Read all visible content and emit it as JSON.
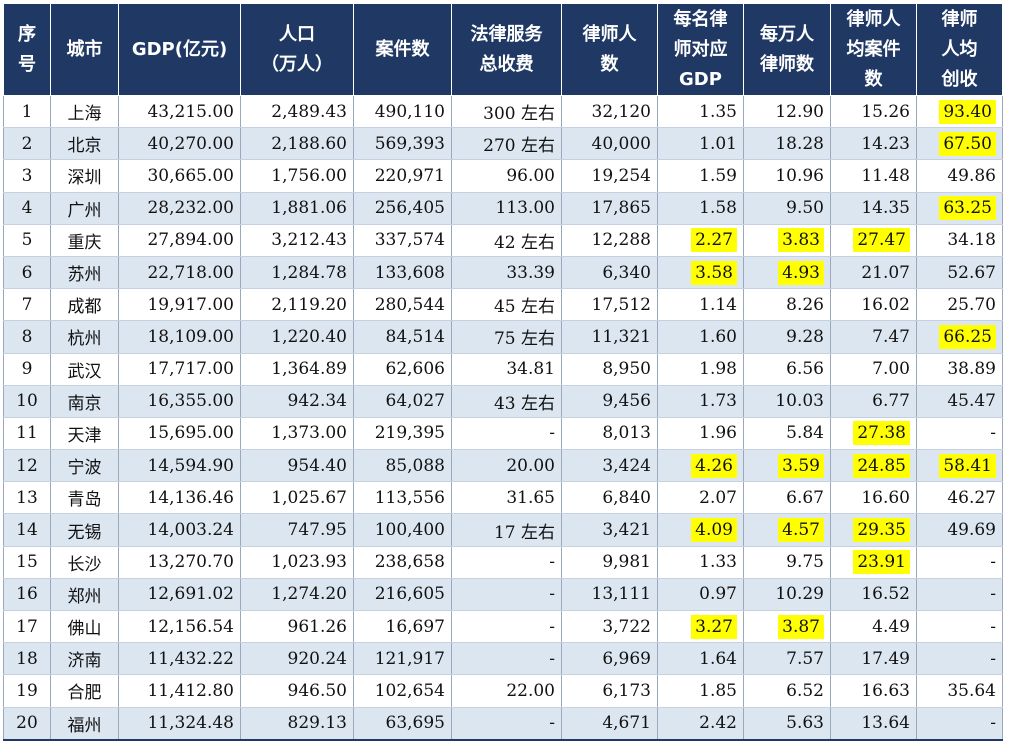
{
  "table": {
    "headers": [
      [
        "序",
        "号"
      ],
      [
        "城市"
      ],
      [
        "GDP(亿元)"
      ],
      [
        "人口",
        "（万人）"
      ],
      [
        "案件数"
      ],
      [
        "法律服务",
        "总收费"
      ],
      [
        "律师人",
        "数"
      ],
      [
        "每名律",
        "师对应",
        "GDP"
      ],
      [
        "每万人",
        "律师数"
      ],
      [
        "律师人",
        "均案件",
        "数"
      ],
      [
        "律师",
        "人均",
        "创收"
      ]
    ],
    "rows": [
      {
        "cells": [
          "1",
          "上海",
          "43,215.00",
          "2,489.43",
          "490,110",
          "300 左右",
          "32,120",
          "1.35",
          "12.90",
          "15.26",
          "93.40"
        ],
        "highlight": [
          10
        ]
      },
      {
        "cells": [
          "2",
          "北京",
          "40,270.00",
          "2,188.60",
          "569,393",
          "270 左右",
          "40,000",
          "1.01",
          "18.28",
          "14.23",
          "67.50"
        ],
        "highlight": [
          10
        ]
      },
      {
        "cells": [
          "3",
          "深圳",
          "30,665.00",
          "1,756.00",
          "220,971",
          "96.00",
          "19,254",
          "1.59",
          "10.96",
          "11.48",
          "49.86"
        ],
        "highlight": []
      },
      {
        "cells": [
          "4",
          "广州",
          "28,232.00",
          "1,881.06",
          "256,405",
          "113.00",
          "17,865",
          "1.58",
          "9.50",
          "14.35",
          "63.25"
        ],
        "highlight": [
          10
        ]
      },
      {
        "cells": [
          "5",
          "重庆",
          "27,894.00",
          "3,212.43",
          "337,574",
          "42 左右",
          "12,288",
          "2.27",
          "3.83",
          "27.47",
          "34.18"
        ],
        "highlight": [
          7,
          8,
          9
        ]
      },
      {
        "cells": [
          "6",
          "苏州",
          "22,718.00",
          "1,284.78",
          "133,608",
          "33.39",
          "6,340",
          "3.58",
          "4.93",
          "21.07",
          "52.67"
        ],
        "highlight": [
          7,
          8
        ]
      },
      {
        "cells": [
          "7",
          "成都",
          "19,917.00",
          "2,119.20",
          "280,544",
          "45 左右",
          "17,512",
          "1.14",
          "8.26",
          "16.02",
          "25.70"
        ],
        "highlight": []
      },
      {
        "cells": [
          "8",
          "杭州",
          "18,109.00",
          "1,220.40",
          "84,514",
          "75 左右",
          "11,321",
          "1.60",
          "9.28",
          "7.47",
          "66.25"
        ],
        "highlight": [
          10
        ]
      },
      {
        "cells": [
          "9",
          "武汉",
          "17,717.00",
          "1,364.89",
          "62,606",
          "34.81",
          "8,950",
          "1.98",
          "6.56",
          "7.00",
          "38.89"
        ],
        "highlight": []
      },
      {
        "cells": [
          "10",
          "南京",
          "16,355.00",
          "942.34",
          "64,027",
          "43 左右",
          "9,456",
          "1.73",
          "10.03",
          "6.77",
          "45.47"
        ],
        "highlight": []
      },
      {
        "cells": [
          "11",
          "天津",
          "15,695.00",
          "1,373.00",
          "219,395",
          "-",
          "8,013",
          "1.96",
          "5.84",
          "27.38",
          "-"
        ],
        "highlight": [
          9
        ]
      },
      {
        "cells": [
          "12",
          "宁波",
          "14,594.90",
          "954.40",
          "85,088",
          "20.00",
          "3,424",
          "4.26",
          "3.59",
          "24.85",
          "58.41"
        ],
        "highlight": [
          7,
          8,
          9,
          10
        ]
      },
      {
        "cells": [
          "13",
          "青岛",
          "14,136.46",
          "1,025.67",
          "113,556",
          "31.65",
          "6,840",
          "2.07",
          "6.67",
          "16.60",
          "46.27"
        ],
        "highlight": []
      },
      {
        "cells": [
          "14",
          "无锡",
          "14,003.24",
          "747.95",
          "100,400",
          "17 左右",
          "3,421",
          "4.09",
          "4.57",
          "29.35",
          "49.69"
        ],
        "highlight": [
          7,
          8,
          9
        ]
      },
      {
        "cells": [
          "15",
          "长沙",
          "13,270.70",
          "1,023.93",
          "238,658",
          "-",
          "9,981",
          "1.33",
          "9.75",
          "23.91",
          "-"
        ],
        "highlight": [
          9
        ]
      },
      {
        "cells": [
          "16",
          "郑州",
          "12,691.02",
          "1,274.20",
          "216,605",
          "-",
          "13,111",
          "0.97",
          "10.29",
          "16.52",
          "-"
        ],
        "highlight": []
      },
      {
        "cells": [
          "17",
          "佛山",
          "12,156.54",
          "961.26",
          "16,697",
          "-",
          "3,722",
          "3.27",
          "3.87",
          "4.49",
          "-"
        ],
        "highlight": [
          7,
          8
        ]
      },
      {
        "cells": [
          "18",
          "济南",
          "11,432.22",
          "920.24",
          "121,917",
          "-",
          "6,969",
          "1.64",
          "7.57",
          "17.49",
          "-"
        ],
        "highlight": []
      },
      {
        "cells": [
          "19",
          "合肥",
          "11,412.80",
          "946.50",
          "102,654",
          "22.00",
          "6,173",
          "1.85",
          "6.52",
          "16.63",
          "35.64"
        ],
        "highlight": []
      },
      {
        "cells": [
          "20",
          "福州",
          "11,324.48",
          "829.13",
          "63,695",
          "-",
          "4,671",
          "2.42",
          "5.63",
          "13.64",
          "-"
        ],
        "highlight": []
      }
    ]
  },
  "colors": {
    "header_bg": "#1f3864",
    "header_text": "#ffffff",
    "stripe_bg": "#dce6f1",
    "highlight": "#ffff00"
  }
}
